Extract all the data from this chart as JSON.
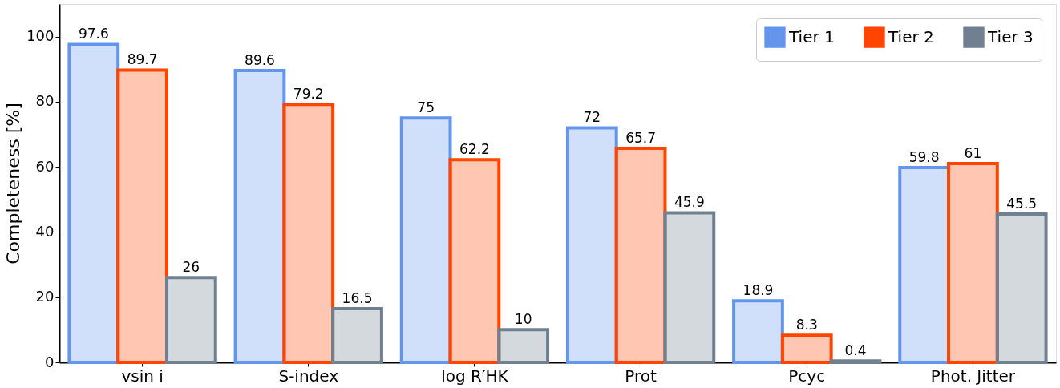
{
  "chart_data": {
    "type": "bar",
    "ylabel": "Completeness [%]",
    "categories": [
      "vsin i",
      "S-index",
      "log R′HK",
      "Prot",
      "Pcyc",
      "Phot. Jitter"
    ],
    "series": [
      {
        "name": "Tier 1",
        "color": "#6495ed",
        "values": [
          97.6,
          89.6,
          75,
          72,
          18.9,
          59.8
        ]
      },
      {
        "name": "Tier 2",
        "color": "#ff4500",
        "values": [
          89.7,
          79.2,
          62.2,
          65.7,
          8.3,
          61
        ]
      },
      {
        "name": "Tier 3",
        "color": "#708090",
        "values": [
          26,
          16.5,
          10,
          45.9,
          0.4,
          45.5
        ]
      }
    ],
    "ylim": [
      0,
      110
    ],
    "yticks": [
      0,
      20,
      40,
      60,
      80,
      100
    ],
    "grid": false,
    "legend": "top right",
    "data_labels": true
  }
}
